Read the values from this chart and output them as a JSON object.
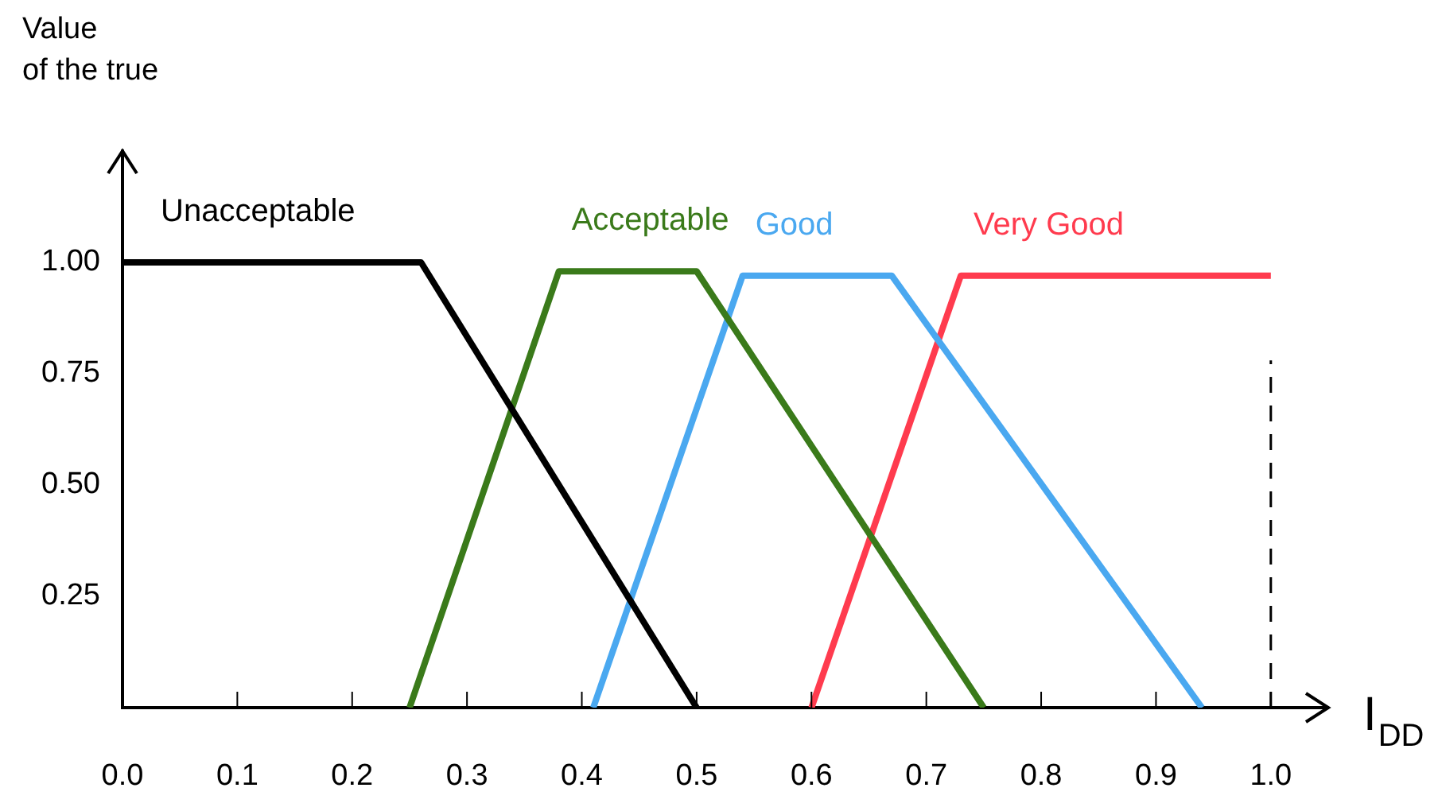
{
  "chart_data": {
    "type": "line",
    "ylabel": "Value\nof the true",
    "xlabel": "I$_{DD}$",
    "xlim": [
      0,
      1.05
    ],
    "xticks": [
      {
        "value": 0,
        "label": "0.0"
      },
      0.1,
      0.2,
      0.3,
      0.4,
      0.5,
      0.6,
      0.7,
      0.8,
      0.9,
      {
        "value": 1,
        "label": "1.0"
      }
    ],
    "ylim": [
      0,
      1.25
    ],
    "yticks": [
      {
        "value": 0.25,
        "label": "0.25"
      },
      {
        "value": 0.5,
        "label": "0.50"
      },
      {
        "value": 0.75,
        "label": "0.75"
      },
      {
        "value": 1,
        "label": "1.00"
      }
    ],
    "grid": false,
    "legend": false,
    "marker": "none",
    "line_style": "solid",
    "series": [
      {
        "name": "Unacceptable",
        "color": "#000000",
        "x": [
          0,
          0.26,
          0.5
        ],
        "values": [
          1,
          1,
          0
        ]
      },
      {
        "name": "Acceptable",
        "color": "#3a7a1a",
        "x": [
          0.25,
          0.38,
          0.5,
          0.75
        ],
        "values": [
          0,
          0.98,
          0.98,
          0
        ]
      },
      {
        "name": "Good",
        "color": "#4aa8f0",
        "x": [
          0.41,
          0.54,
          0.67,
          0.94
        ],
        "values": [
          0,
          0.97,
          0.97,
          0
        ]
      },
      {
        "name": "Very Good",
        "color": "#ff3b4e",
        "x": [
          0.6,
          0.73,
          1
        ],
        "values": [
          0,
          0.97,
          0.97
        ]
      }
    ],
    "ref_lines": [
      {
        "axis": "x",
        "value": 1,
        "color": "#000000",
        "line_style": "dashed"
      }
    ]
  }
}
